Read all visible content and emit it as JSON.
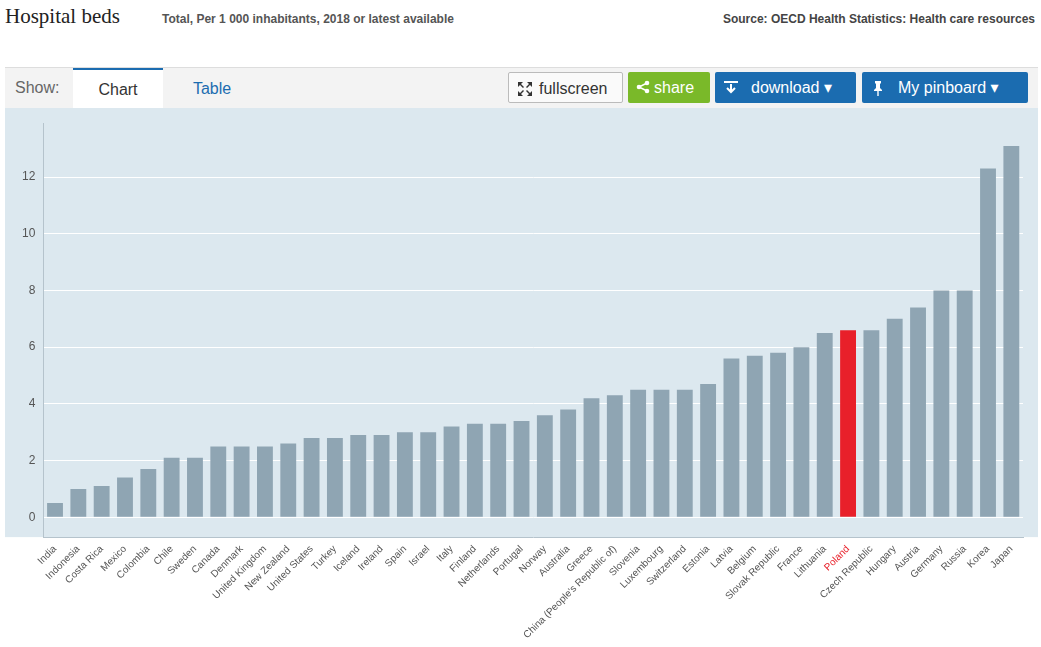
{
  "chart_data": {
    "type": "bar",
    "title": "Hospital beds",
    "subtitle": "Total, Per 1 000 inhabitants, 2018 or latest available",
    "source": "Source: OECD Health Statistics: Health care resources",
    "categories": [
      "India",
      "Indonesia",
      "Costa Rica",
      "Mexico",
      "Colombia",
      "Chile",
      "Sweden",
      "Canada",
      "Denmark",
      "United Kingdom",
      "New Zealand",
      "United States",
      "Turkey",
      "Iceland",
      "Ireland",
      "Spain",
      "Israel",
      "Italy",
      "Finland",
      "Netherlands",
      "Portugal",
      "Norway",
      "Australia",
      "Greece",
      "China (People's Republic of)",
      "Slovenia",
      "Luxembourg",
      "Switzerland",
      "Estonia",
      "Latvia",
      "Belgium",
      "Slovak Republic",
      "France",
      "Lithuania",
      "Poland",
      "Czech Republic",
      "Hungary",
      "Austria",
      "Germany",
      "Russia",
      "Korea",
      "Japan"
    ],
    "values": [
      0.5,
      1.0,
      1.1,
      1.4,
      1.7,
      2.1,
      2.1,
      2.5,
      2.5,
      2.5,
      2.6,
      2.8,
      2.8,
      2.9,
      2.9,
      3.0,
      3.0,
      3.2,
      3.3,
      3.3,
      3.4,
      3.6,
      3.8,
      4.2,
      4.3,
      4.5,
      4.5,
      4.5,
      4.7,
      5.6,
      5.7,
      5.8,
      6.0,
      6.5,
      6.6,
      6.6,
      7.0,
      7.4,
      8.0,
      8.0,
      12.3,
      13.1
    ],
    "colors": [
      "#8fa5b3",
      "#8fa5b3",
      "#8fa5b3",
      "#8fa5b3",
      "#8fa5b3",
      "#8fa5b3",
      "#8fa5b3",
      "#8fa5b3",
      "#8fa5b3",
      "#8fa5b3",
      "#8fa5b3",
      "#8fa5b3",
      "#8fa5b3",
      "#8fa5b3",
      "#8fa5b3",
      "#8fa5b3",
      "#8fa5b3",
      "#8fa5b3",
      "#8fa5b3",
      "#8fa5b3",
      "#8fa5b3",
      "#8fa5b3",
      "#8fa5b3",
      "#8fa5b3",
      "#8fa5b3",
      "#8fa5b3",
      "#8fa5b3",
      "#8fa5b3",
      "#8fa5b3",
      "#8fa5b3",
      "#8fa5b3",
      "#8fa5b3",
      "#8fa5b3",
      "#8fa5b3",
      "#e8202a",
      "#8fa5b3",
      "#8fa5b3",
      "#8fa5b3",
      "#8fa5b3",
      "#8fa5b3",
      "#8fa5b3",
      "#8fa5b3"
    ],
    "ylim": [
      -0.7,
      13.9
    ],
    "yticks": [
      0,
      2,
      4,
      6,
      8,
      10,
      12
    ],
    "grid": true
  },
  "toolbar": {
    "show_label": "Show:",
    "tabs": [
      "Chart",
      "Table"
    ],
    "buttons": [
      "fullscreen",
      "share",
      "download ▾",
      "My pinboard ▾"
    ]
  }
}
